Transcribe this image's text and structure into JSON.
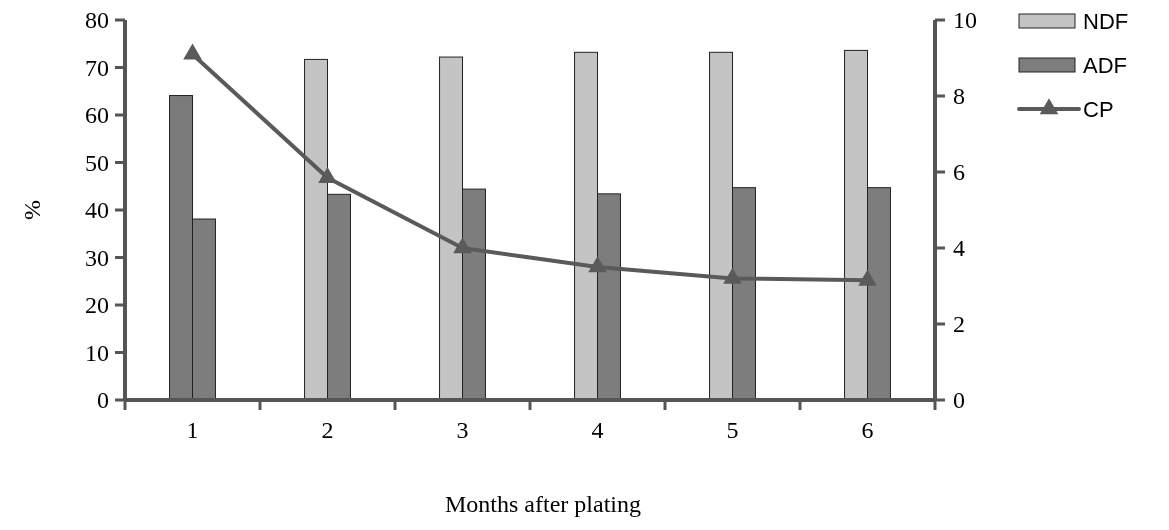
{
  "chart_data": {
    "type": "bar",
    "xlabel": "Months after plating",
    "ylabel": "%",
    "categories": [
      "1",
      "2",
      "3",
      "4",
      "5",
      "6"
    ],
    "series": [
      {
        "name": "NDF",
        "color": "#c4c4c4",
        "colors": [
          "#7a7a7a",
          "#c4c4c4",
          "#c4c4c4",
          "#c4c4c4",
          "#c4c4c4",
          "#c4c4c4"
        ],
        "values": [
          64.1,
          71.7,
          72.2,
          73.2,
          73.2,
          73.6
        ]
      },
      {
        "name": "ADF",
        "color": "#7d7d7d",
        "values": [
          38.1,
          43.3,
          44.4,
          43.4,
          44.7,
          44.7
        ]
      },
      {
        "name": "CP",
        "type": "line",
        "axis": "y2",
        "color": "#5a5a5a",
        "marker": "triangle",
        "values": [
          9.1,
          5.85,
          4.0,
          3.5,
          3.2,
          3.15
        ]
      }
    ],
    "ylim": [
      0,
      80
    ],
    "yticks": [
      0,
      10,
      20,
      30,
      40,
      50,
      60,
      70,
      80
    ],
    "y2lim": [
      0,
      10
    ],
    "y2ticks": [
      0,
      2,
      4,
      6,
      8,
      10
    ],
    "legend": "top right",
    "grid": false
  }
}
